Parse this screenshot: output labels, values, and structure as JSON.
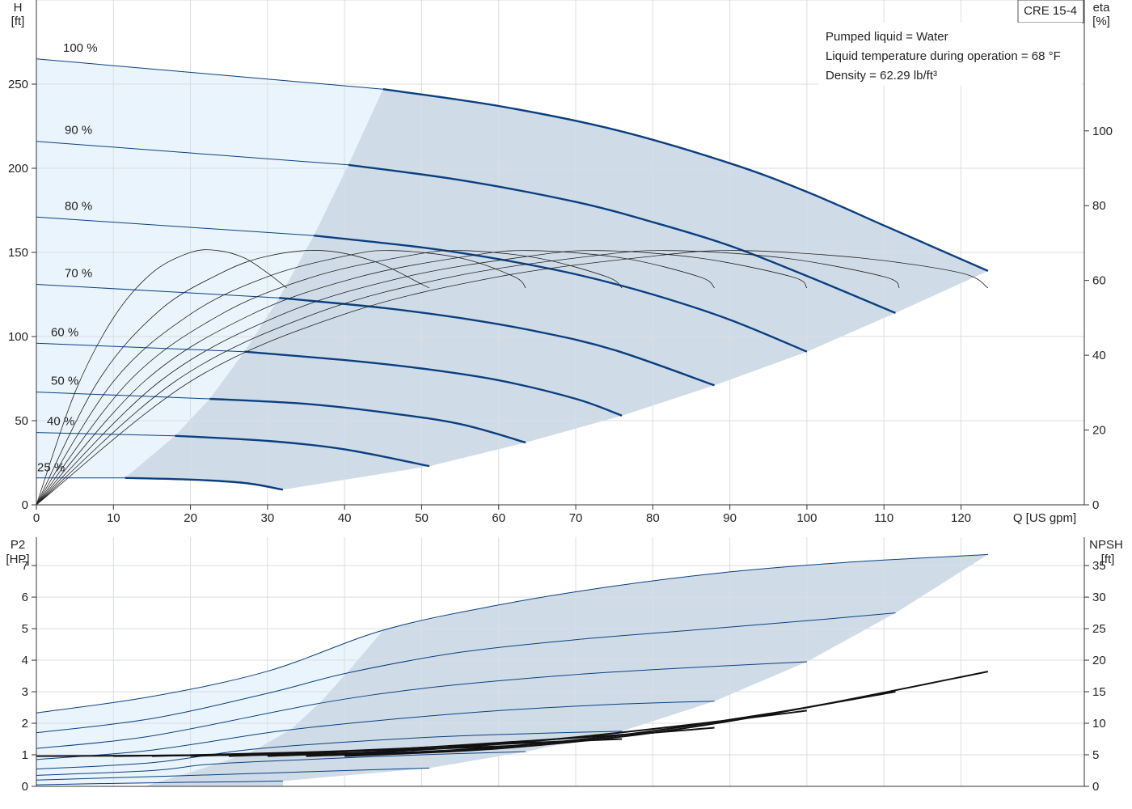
{
  "colors": {
    "light_region": "#eaf4fc",
    "dark_region": "#cfdce8",
    "curve_blue": "#0b3f80",
    "black": "#111111",
    "grid": "#d9dde2"
  },
  "model_label": "CRE 15-4",
  "notes": [
    "Pumped liquid = Water",
    "Liquid temperature during operation = 68 °F",
    "Density = 62.29 lb/ft³"
  ],
  "chart_data": [
    {
      "type": "line",
      "title": "",
      "xlabel": "Q [US gpm]",
      "ylabel_left": [
        "H",
        "[ft]"
      ],
      "ylabel_right": [
        "eta",
        "[%]"
      ],
      "xlim": [
        0,
        136
      ],
      "ylim_left": [
        0,
        300
      ],
      "ylim_right": [
        0,
        135
      ],
      "x_ticks": [
        "0",
        "10",
        "20",
        "30",
        "40",
        "50",
        "60",
        "70",
        "80",
        "90",
        "100",
        "110",
        "120"
      ],
      "y_ticks_left": [
        "0",
        "50",
        "100",
        "150",
        "200",
        "250"
      ],
      "y_ticks_right": [
        "0",
        "20",
        "40",
        "60",
        "80",
        "100"
      ],
      "grid": true,
      "speed_curves": [
        {
          "label": "100 %",
          "light_x": [
            0,
            45.0
          ],
          "light_y": [
            265,
            247
          ],
          "bold_x": [
            45.0,
            60,
            75,
            90,
            100,
            110,
            118,
            123.5
          ],
          "bold_y": [
            247,
            237,
            223,
            203,
            186,
            166,
            150,
            139
          ]
        },
        {
          "label": "90 %",
          "light_x": [
            0,
            40.5
          ],
          "light_y": [
            216,
            202
          ],
          "bold_x": [
            40.5,
            55,
            70,
            80,
            90,
            100,
            111.5
          ],
          "bold_y": [
            202,
            193,
            180,
            168,
            154,
            136,
            114
          ]
        },
        {
          "label": "80 %",
          "light_x": [
            0,
            36.0
          ],
          "light_y": [
            171,
            160
          ],
          "bold_x": [
            36.0,
            50,
            60,
            70,
            80,
            90,
            100
          ],
          "bold_y": [
            160,
            153,
            146,
            137,
            125,
            110,
            91
          ]
        },
        {
          "label": "70 %",
          "light_x": [
            0,
            31.5
          ],
          "light_y": [
            131,
            123
          ],
          "bold_x": [
            31.5,
            45,
            55,
            65,
            75,
            88
          ],
          "bold_y": [
            123,
            117,
            111,
            103,
            92,
            71
          ]
        },
        {
          "label": "60 %",
          "light_x": [
            0,
            27.0
          ],
          "light_y": [
            96,
            91
          ],
          "bold_x": [
            27.0,
            40,
            50,
            60,
            70,
            76
          ],
          "bold_y": [
            91,
            86,
            81,
            74,
            63,
            53
          ]
        },
        {
          "label": "50 %",
          "light_x": [
            0,
            22.5
          ],
          "light_y": [
            67,
            63
          ],
          "bold_x": [
            22.5,
            35,
            45,
            55,
            63.5
          ],
          "bold_y": [
            63,
            60,
            55,
            48,
            37
          ]
        },
        {
          "label": "40 %",
          "light_x": [
            0,
            18.0
          ],
          "light_y": [
            43,
            41
          ],
          "bold_x": [
            18.0,
            30,
            40,
            51
          ],
          "bold_y": [
            41,
            38,
            33,
            23
          ]
        },
        {
          "label": "25 %",
          "light_x": [
            0,
            11.5
          ],
          "light_y": [
            16,
            16
          ],
          "bold_x": [
            11.5,
            20,
            27,
            32
          ],
          "bold_y": [
            16,
            15,
            13,
            9
          ]
        }
      ],
      "efficiency_curves": [
        {
          "x": [
            0,
            5,
            10,
            15,
            20,
            23.5,
            27,
            30,
            32.5
          ],
          "y": [
            0,
            30,
            50,
            62,
            67.5,
            68,
            66,
            62,
            58
          ]
        },
        {
          "x": [
            0,
            8,
            16,
            24,
            30,
            37,
            44,
            50,
            51
          ],
          "y": [
            0,
            33,
            52,
            62,
            66.5,
            68,
            65,
            59,
            58
          ]
        },
        {
          "x": [
            0,
            10,
            20,
            30,
            40,
            46,
            55,
            62,
            63.5
          ],
          "y": [
            0,
            33,
            51,
            61,
            66.5,
            68,
            66,
            61,
            58
          ]
        },
        {
          "x": [
            0,
            12,
            24,
            36,
            48,
            55,
            65,
            74,
            76
          ],
          "y": [
            0,
            33,
            51,
            61,
            66.5,
            68,
            66,
            61,
            58
          ]
        },
        {
          "x": [
            0,
            14,
            28,
            42,
            56,
            64,
            76,
            86,
            88
          ],
          "y": [
            0,
            33,
            51,
            61,
            66.5,
            68,
            66,
            61,
            58
          ]
        },
        {
          "x": [
            0,
            16,
            32,
            48,
            64,
            73,
            86,
            98,
            100
          ],
          "y": [
            0,
            33,
            51,
            61,
            66.5,
            68,
            66,
            61,
            58
          ]
        },
        {
          "x": [
            0,
            18,
            36,
            54,
            72,
            82,
            97,
            110,
            112
          ],
          "y": [
            0,
            33,
            51,
            61,
            66.5,
            68,
            66,
            61,
            58
          ]
        },
        {
          "x": [
            0,
            20,
            40,
            60,
            80,
            91,
            107,
            120,
            123.5
          ],
          "y": [
            0,
            33,
            51,
            61,
            66.5,
            68,
            66,
            62,
            58
          ]
        }
      ],
      "bep_boundary_x": [
        0,
        11.5,
        18,
        22.5,
        27,
        31.5,
        36,
        40.5,
        45
      ],
      "bep_boundary_y": [
        0,
        16,
        41,
        63,
        91,
        123,
        160,
        202,
        247
      ]
    },
    {
      "type": "line",
      "title": "",
      "xlabel": "",
      "ylabel_left": [
        "P2",
        "[HP]"
      ],
      "ylabel_right": [
        "NPSH",
        "[ft]"
      ],
      "xlim": [
        0,
        136
      ],
      "ylim_left": [
        0,
        7.9
      ],
      "ylim_right": [
        0,
        39.5
      ],
      "y_ticks_left": [
        "0",
        "1",
        "2",
        "3",
        "4",
        "5",
        "6",
        "7"
      ],
      "y_ticks_right": [
        "0",
        "5",
        "10",
        "15",
        "20",
        "25",
        "30",
        "35"
      ],
      "grid": true,
      "power_curves": [
        {
          "x": [
            0,
            15,
            30,
            45,
            60,
            75,
            90,
            105,
            123.5
          ],
          "y": [
            2.33,
            2.85,
            3.65,
            4.95,
            5.75,
            6.35,
            6.8,
            7.1,
            7.35
          ]
        },
        {
          "x": [
            0,
            15,
            30,
            40.5,
            55,
            70,
            85,
            100,
            111.5
          ],
          "y": [
            1.7,
            2.15,
            2.95,
            3.6,
            4.25,
            4.65,
            4.95,
            5.25,
            5.5
          ]
        },
        {
          "x": [
            0,
            15,
            36,
            50,
            65,
            80,
            100
          ],
          "y": [
            1.2,
            1.6,
            2.6,
            3.1,
            3.45,
            3.7,
            3.95
          ]
        },
        {
          "x": [
            0,
            15,
            31.5,
            45,
            60,
            75,
            88
          ],
          "y": [
            0.85,
            1.15,
            1.75,
            2.1,
            2.4,
            2.6,
            2.7
          ]
        },
        {
          "x": [
            0,
            15,
            27,
            40,
            55,
            76
          ],
          "y": [
            0.55,
            0.75,
            1.15,
            1.4,
            1.6,
            1.75
          ]
        },
        {
          "x": [
            0,
            15,
            22.5,
            35,
            50,
            63.5
          ],
          "y": [
            0.35,
            0.5,
            0.7,
            0.85,
            1.0,
            1.1
          ]
        },
        {
          "x": [
            0,
            18,
            30,
            40,
            51
          ],
          "y": [
            0.2,
            0.33,
            0.42,
            0.5,
            0.58
          ]
        },
        {
          "x": [
            0,
            11.5,
            20,
            27,
            32
          ],
          "y": [
            0.05,
            0.1,
            0.13,
            0.15,
            0.17
          ]
        }
      ],
      "npsh_curves": [
        {
          "x": [
            40,
            60,
            80,
            100,
            123.5
          ],
          "y": [
            4.8,
            6.0,
            8.5,
            12.5,
            18.2
          ]
        },
        {
          "x": [
            35,
            55,
            75,
            95,
            111.5
          ],
          "y": [
            4.8,
            5.8,
            8.0,
            11.5,
            15.0
          ]
        },
        {
          "x": [
            30,
            50,
            70,
            90,
            100
          ],
          "y": [
            4.8,
            5.8,
            7.8,
            10.5,
            12.0
          ]
        },
        {
          "x": [
            25,
            45,
            65,
            80,
            88
          ],
          "y": [
            4.8,
            5.8,
            7.3,
            8.5,
            9.3
          ]
        },
        {
          "x": [
            20,
            40,
            60,
            76
          ],
          "y": [
            4.8,
            5.6,
            6.7,
            7.5
          ]
        },
        {
          "x": [
            15,
            35,
            50,
            63.5
          ],
          "y": [
            4.8,
            5.4,
            5.9,
            6.5
          ]
        },
        {
          "x": [
            10,
            30,
            45,
            51
          ],
          "y": [
            4.8,
            5.1,
            5.3,
            5.5
          ]
        },
        {
          "x": [
            0,
            20,
            32
          ],
          "y": [
            4.8,
            4.9,
            5.0
          ]
        }
      ]
    }
  ]
}
